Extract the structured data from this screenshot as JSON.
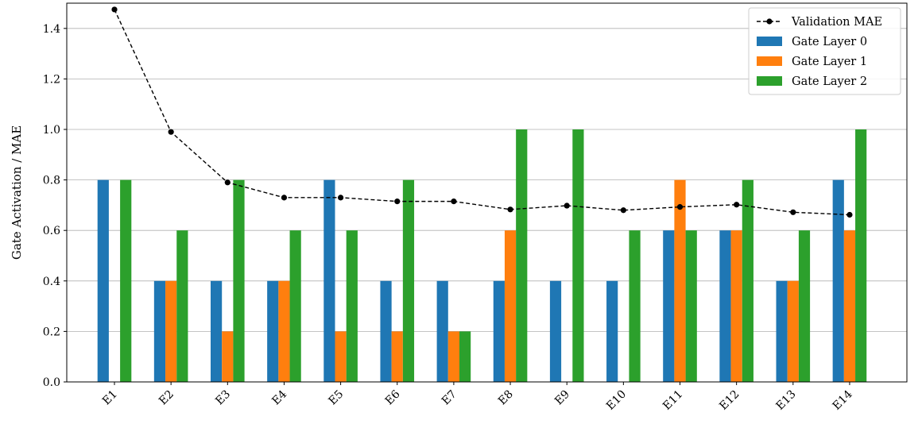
{
  "chart_data": {
    "type": "bar",
    "title": "",
    "xlabel": "",
    "ylabel": "Gate Activation / MAE",
    "ylim": [
      0,
      1.5
    ],
    "yticks": [
      0.0,
      0.2,
      0.4,
      0.6,
      0.8,
      1.0,
      1.2,
      1.4
    ],
    "grid": "horizontal",
    "legend_position": "top-right",
    "categories": [
      "E1",
      "E2",
      "E3",
      "E4",
      "E5",
      "E6",
      "E7",
      "E8",
      "E9",
      "E10",
      "E11",
      "E12",
      "E13",
      "E14"
    ],
    "series": [
      {
        "name": "Gate Layer 0",
        "kind": "bar",
        "color": "#1f77b4",
        "values": [
          0.8,
          0.4,
          0.4,
          0.4,
          0.8,
          0.4,
          0.4,
          0.4,
          0.4,
          0.4,
          0.6,
          0.6,
          0.4,
          0.8
        ]
      },
      {
        "name": "Gate Layer 1",
        "kind": "bar",
        "color": "#ff7f0e",
        "values": [
          0.0,
          0.4,
          0.2,
          0.4,
          0.2,
          0.2,
          0.2,
          0.6,
          0.0,
          0.0,
          0.8,
          0.6,
          0.4,
          0.6
        ]
      },
      {
        "name": "Gate Layer 2",
        "kind": "bar",
        "color": "#2ca02c",
        "values": [
          0.8,
          0.6,
          0.8,
          0.6,
          0.6,
          0.8,
          0.2,
          1.0,
          1.0,
          0.6,
          0.6,
          0.8,
          0.6,
          1.0
        ]
      },
      {
        "name": "Validation MAE",
        "kind": "line",
        "style": "dashed",
        "marker": "circle",
        "color": "#000000",
        "values": [
          1.475,
          0.99,
          0.79,
          0.73,
          0.73,
          0.715,
          0.715,
          0.683,
          0.698,
          0.68,
          0.693,
          0.702,
          0.672,
          0.662
        ]
      }
    ],
    "legend_order": [
      "Validation MAE",
      "Gate Layer 0",
      "Gate Layer 1",
      "Gate Layer 2"
    ]
  }
}
